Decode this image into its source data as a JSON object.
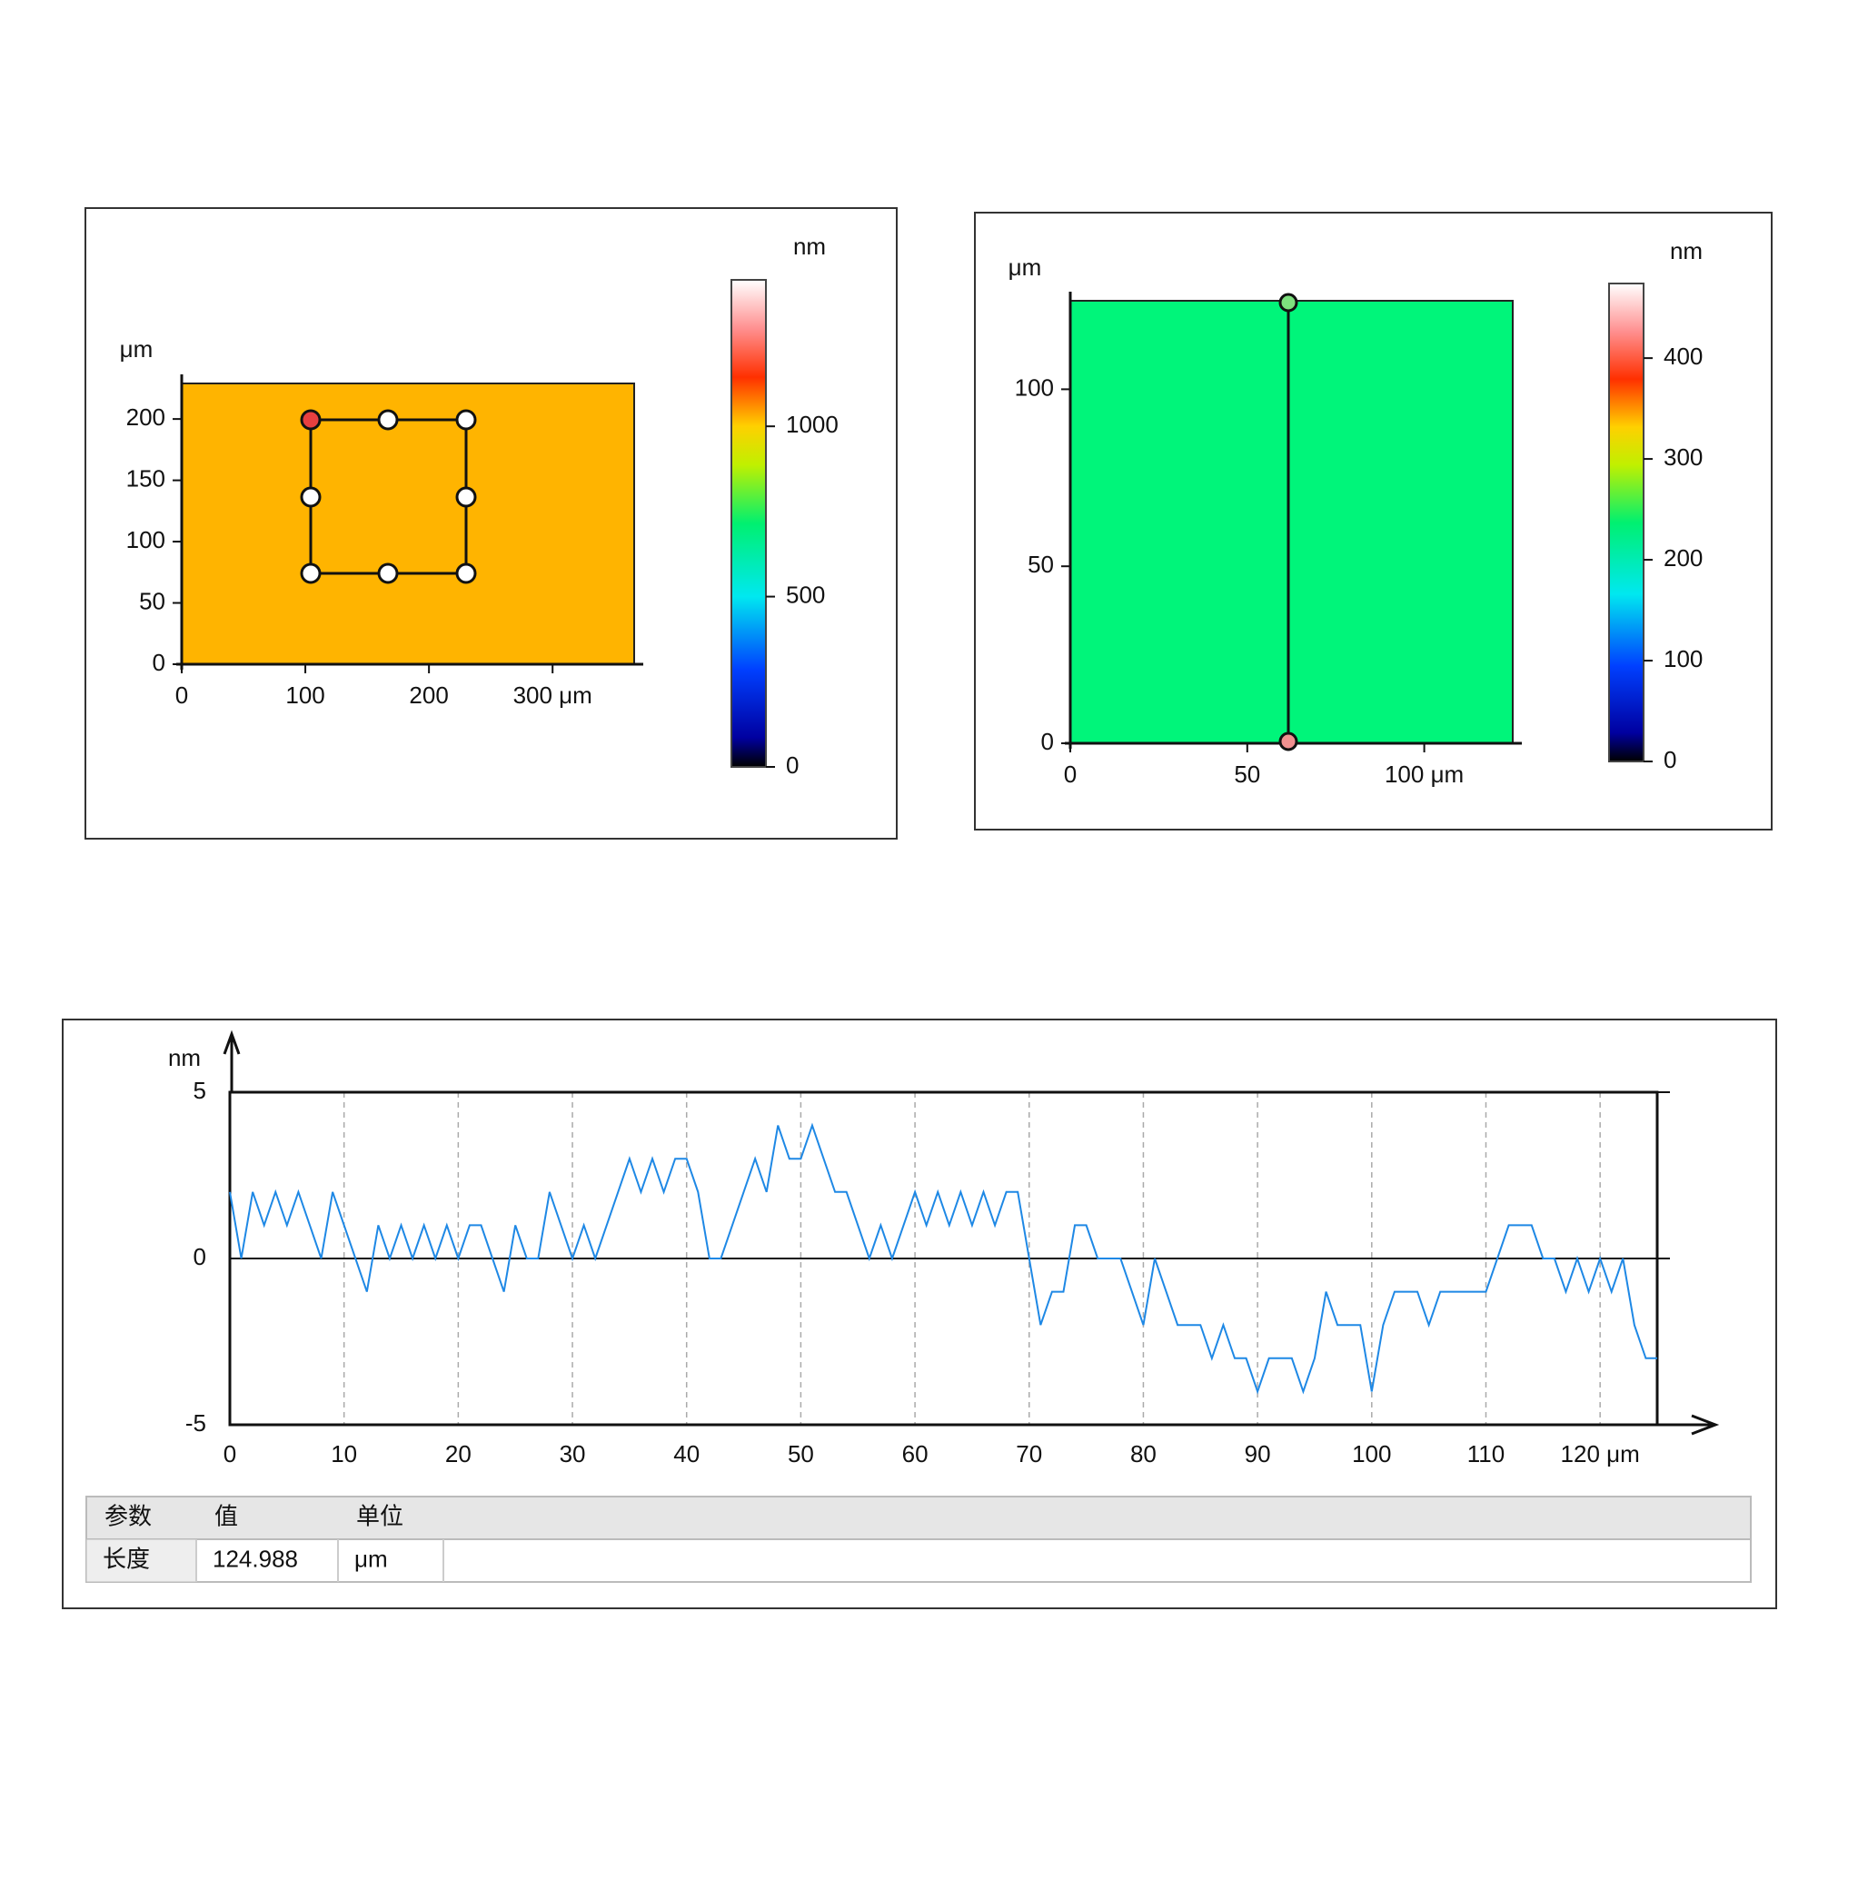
{
  "chart_data": [
    {
      "type": "heatmap",
      "color": "#ffb400",
      "ylabel": "μm",
      "clabel": "nm",
      "xlim": [
        0,
        366
      ],
      "xticks": [
        0,
        100,
        200,
        {
          "value": 300,
          "label": "300 μm"
        }
      ],
      "ylim": [
        0,
        229
      ],
      "yticks": [
        0,
        50,
        100,
        150,
        200
      ],
      "clim": [
        0,
        1430
      ],
      "cticks": [
        0,
        500,
        1000
      ]
    },
    {
      "type": "heatmap",
      "color": "#00f57a",
      "ylabel": "μm",
      "clabel": "nm",
      "xlim": [
        0,
        125
      ],
      "xticks": [
        0,
        50,
        {
          "value": 100,
          "label": "100 μm"
        }
      ],
      "ylim": [
        0,
        125
      ],
      "yticks": [
        0,
        50,
        100
      ],
      "clim": [
        0,
        474
      ],
      "cticks": [
        0,
        100,
        200,
        300,
        400
      ]
    },
    {
      "type": "line",
      "color": "#1e88e5",
      "ylabel": "nm",
      "grid": true,
      "xlim": [
        0,
        125
      ],
      "xticks": [
        0,
        10,
        20,
        30,
        40,
        50,
        60,
        70,
        80,
        90,
        100,
        110,
        {
          "value": 120,
          "label": "120 μm"
        }
      ],
      "ylim": [
        -5,
        5
      ],
      "yticks": [
        -5,
        0,
        5
      ],
      "x": [
        0,
        1,
        2,
        3,
        4,
        5,
        6,
        7,
        8,
        9,
        10,
        11,
        12,
        13,
        14,
        15,
        16,
        17,
        18,
        19,
        20,
        21,
        22,
        23,
        24,
        25,
        26,
        27,
        28,
        29,
        30,
        31,
        32,
        33,
        34,
        35,
        36,
        37,
        38,
        39,
        40,
        41,
        42,
        43,
        44,
        45,
        46,
        47,
        48,
        49,
        50,
        51,
        52,
        53,
        54,
        55,
        56,
        57,
        58,
        59,
        60,
        61,
        62,
        63,
        64,
        65,
        66,
        67,
        68,
        69,
        70,
        71,
        72,
        73,
        74,
        75,
        76,
        77,
        78,
        79,
        80,
        81,
        82,
        83,
        84,
        85,
        86,
        87,
        88,
        89,
        90,
        91,
        92,
        93,
        94,
        95,
        96,
        97,
        98,
        99,
        100,
        101,
        102,
        103,
        104,
        105,
        106,
        107,
        108,
        109,
        110,
        111,
        112,
        113,
        114,
        115,
        116,
        117,
        118,
        119,
        120,
        121,
        122,
        123,
        124,
        125
      ],
      "values": [
        2,
        0,
        2,
        1,
        2,
        1,
        2,
        1,
        0,
        2,
        1,
        0,
        -1,
        1,
        0,
        1,
        0,
        1,
        0,
        1,
        0,
        1,
        1,
        0,
        -1,
        1,
        0,
        0,
        2,
        1,
        0,
        1,
        0,
        1,
        2,
        3,
        2,
        3,
        2,
        3,
        3,
        2,
        0,
        0,
        1,
        2,
        3,
        2,
        4,
        3,
        3,
        4,
        3,
        2,
        2,
        1,
        0,
        1,
        0,
        1,
        2,
        1,
        2,
        1,
        2,
        1,
        2,
        1,
        2,
        2,
        0,
        -2,
        -1,
        -1,
        1,
        1,
        0,
        0,
        0,
        -1,
        -2,
        0,
        -1,
        -2,
        -2,
        -2,
        -3,
        -2,
        -3,
        -3,
        -4,
        -3,
        -3,
        -3,
        -4,
        -3,
        -1,
        -2,
        -2,
        -2,
        -4,
        -2,
        -1,
        -1,
        -1,
        -2,
        -1,
        -1,
        -1,
        -1,
        -1,
        0,
        1,
        1,
        1,
        0,
        0,
        -1,
        0,
        -1,
        0,
        -1,
        0,
        -2,
        -3,
        -3
      ]
    }
  ],
  "table": {
    "header": [
      "参数",
      "值",
      "单位"
    ],
    "rows": [
      [
        "长度",
        "124.988",
        "μm"
      ]
    ]
  }
}
